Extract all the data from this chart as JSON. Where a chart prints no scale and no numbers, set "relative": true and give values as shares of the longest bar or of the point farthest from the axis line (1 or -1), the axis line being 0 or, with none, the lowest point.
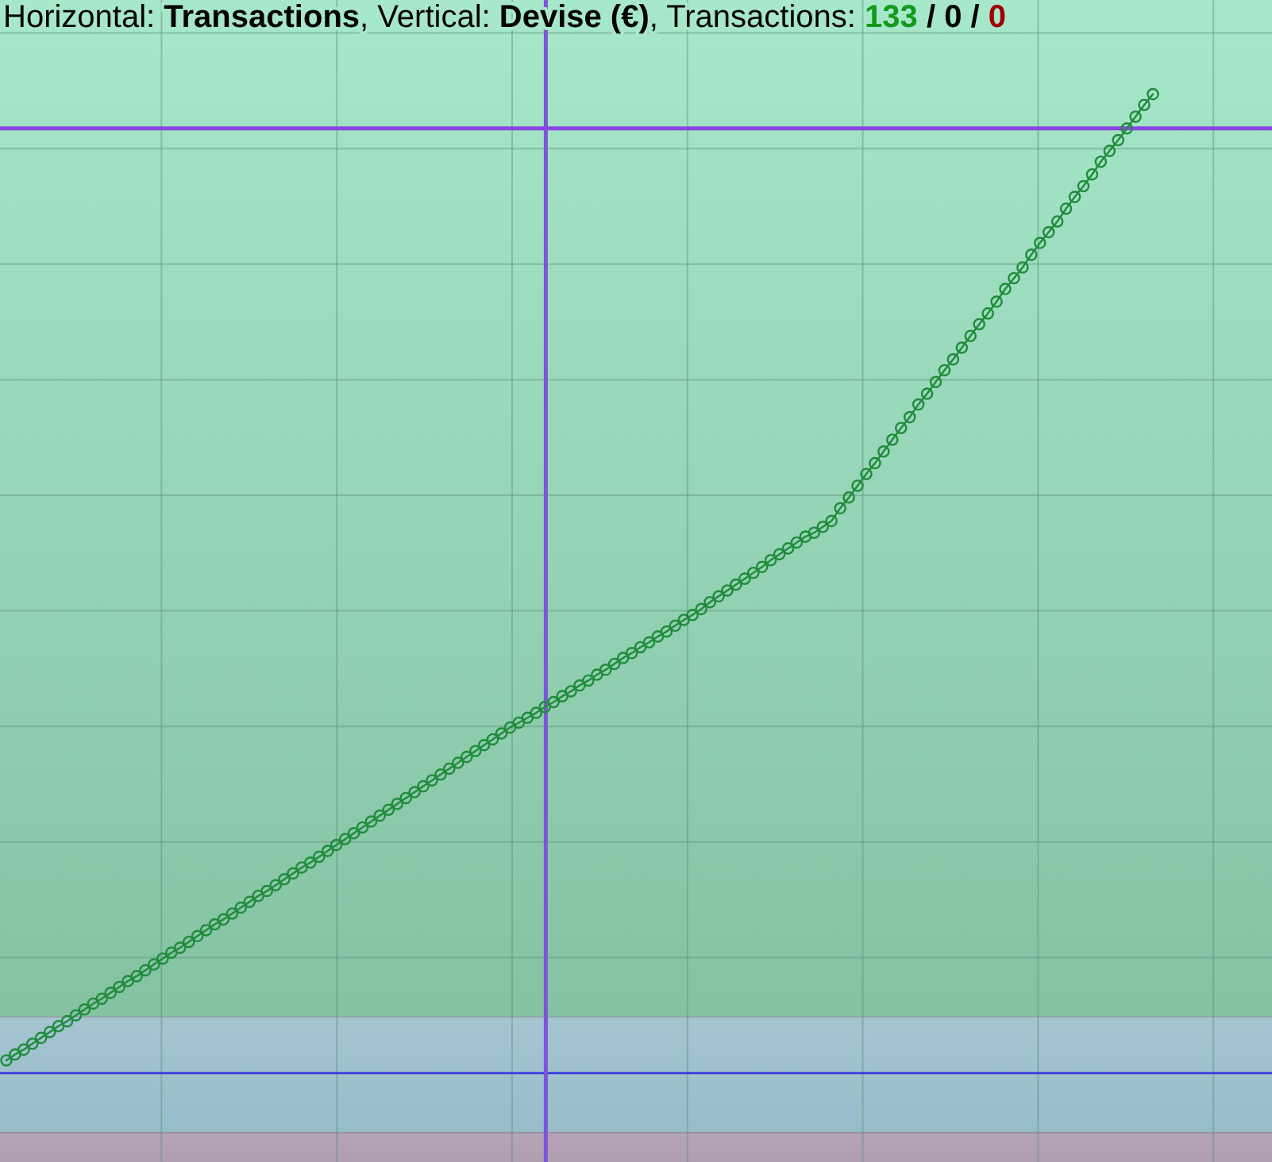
{
  "chart_data": {
    "type": "line",
    "title": "Horizontal: Transactions, Vertical: Devise (€), Transactions: 133 / 0 / 0",
    "categories": [
      null,
      null,
      null,
      null,
      null,
      null,
      null,
      null,
      null,
      null,
      null,
      null,
      null,
      null,
      null,
      null,
      null,
      null,
      null,
      null,
      null,
      null,
      null,
      null,
      null,
      null,
      null,
      null,
      null,
      null,
      null,
      null,
      null,
      null,
      null,
      null,
      null,
      null,
      null,
      null,
      null,
      null,
      null,
      null,
      null,
      null,
      null,
      null,
      null,
      null,
      null,
      null,
      null,
      null,
      null,
      null,
      null,
      null,
      null,
      null,
      null,
      null,
      null,
      null,
      null,
      null,
      null,
      null,
      null,
      null,
      null,
      null,
      null,
      null,
      null,
      null,
      null,
      null,
      null,
      null,
      null,
      null,
      null,
      null,
      null,
      null,
      null,
      null,
      null,
      null,
      null,
      null,
      null,
      null,
      null,
      null,
      null,
      null,
      null,
      null,
      null,
      null,
      null,
      null,
      null,
      null,
      null,
      null,
      null,
      null,
      null,
      null,
      null,
      null,
      null,
      null,
      null,
      null,
      null,
      null,
      null,
      null,
      null,
      null,
      null,
      null,
      null,
      null,
      null,
      null,
      null,
      null,
      null
    ],
    "series": [
      {
        "color": "#1f8c3b",
        "values": [
          0.013,
          0.019,
          0.024,
          0.03,
          0.036,
          0.042,
          0.048,
          0.053,
          0.059,
          0.065,
          0.071,
          0.076,
          0.082,
          0.088,
          0.094,
          0.099,
          0.105,
          0.111,
          0.117,
          0.123,
          0.128,
          0.134,
          0.14,
          0.146,
          0.152,
          0.157,
          0.163,
          0.169,
          0.175,
          0.181,
          0.186,
          0.192,
          0.198,
          0.204,
          0.21,
          0.215,
          0.221,
          0.227,
          0.233,
          0.239,
          0.245,
          0.251,
          0.257,
          0.263,
          0.269,
          0.275,
          0.281,
          0.287,
          0.293,
          0.299,
          0.305,
          0.311,
          0.317,
          0.323,
          0.329,
          0.335,
          0.341,
          0.347,
          0.353,
          0.358,
          0.363,
          0.368,
          0.374,
          0.379,
          0.385,
          0.39,
          0.396,
          0.401,
          0.407,
          0.412,
          0.418,
          0.424,
          0.429,
          0.435,
          0.44,
          0.446,
          0.451,
          0.457,
          0.463,
          0.468,
          0.474,
          0.481,
          0.487,
          0.493,
          0.499,
          0.505,
          0.511,
          0.517,
          0.524,
          0.53,
          0.536,
          0.542,
          0.548,
          0.552,
          0.558,
          0.564,
          0.577,
          0.588,
          0.6,
          0.612,
          0.623,
          0.635,
          0.647,
          0.659,
          0.67,
          0.683,
          0.694,
          0.706,
          0.718,
          0.729,
          0.741,
          0.753,
          0.765,
          0.776,
          0.788,
          0.801,
          0.812,
          0.823,
          0.836,
          0.848,
          0.859,
          0.87,
          0.883,
          0.895,
          0.906,
          0.918,
          0.931,
          0.942,
          0.953,
          0.965,
          0.977,
          0.989,
          1
        ]
      }
    ],
    "relative": true,
    "grid": true,
    "marker": "circle",
    "ref_lines": [
      {
        "axis": "y",
        "value": 0.965,
        "color": "#8a44e4"
      }
    ]
  }
}
